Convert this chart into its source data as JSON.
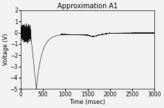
{
  "title": "Approximation A1",
  "xlabel": "Time (msec)",
  "ylabel": "Voltage (V)",
  "xlim": [
    0,
    3000
  ],
  "ylim": [
    -5.0,
    2.0
  ],
  "yticks": [
    -5.0,
    -4.0,
    -3.0,
    -2.0,
    -1.0,
    0.0,
    1.0,
    2.0
  ],
  "xticks": [
    0,
    500,
    1000,
    1500,
    2000,
    2500,
    3000
  ],
  "line_color": "#111111",
  "bg_color": "#f2f2f2",
  "fig_color": "#f2f2f2",
  "title_fontsize": 7,
  "label_fontsize": 6,
  "tick_fontsize": 5.5
}
